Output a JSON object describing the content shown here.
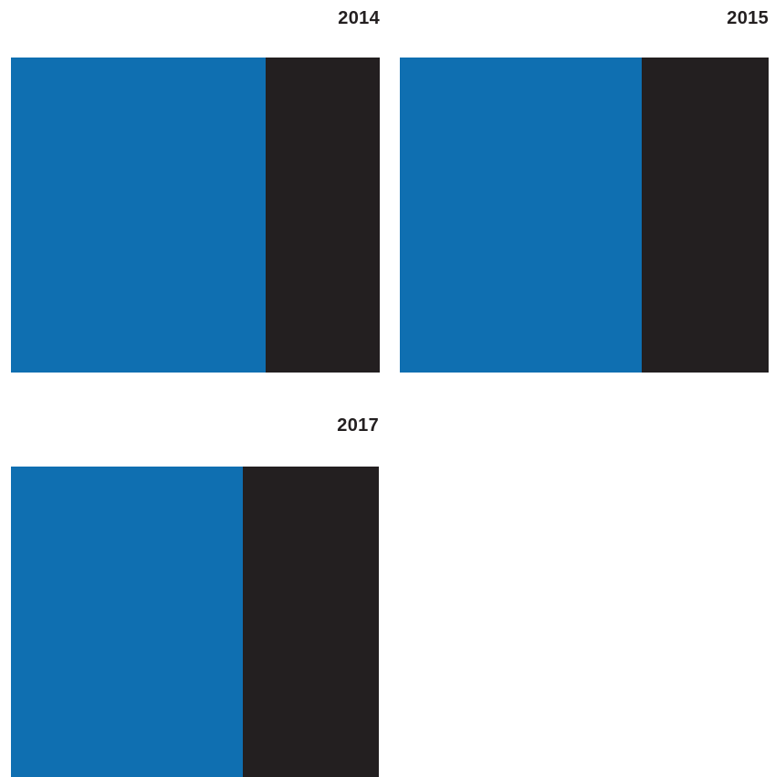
{
  "colors": {
    "primary": "#0f6fb1",
    "secondary": "#231f20",
    "text": "#231f20"
  },
  "chart_data": [
    {
      "type": "bar",
      "stacked": "100%",
      "title": "2014",
      "series": [
        {
          "color": "#0f6fb1",
          "value": 0.69
        },
        {
          "color": "#231f20",
          "value": 0.31
        }
      ]
    },
    {
      "type": "bar",
      "stacked": "100%",
      "title": "2015",
      "series": [
        {
          "color": "#0f6fb1",
          "value": 0.655
        },
        {
          "color": "#231f20",
          "value": 0.345
        }
      ]
    },
    {
      "type": "bar",
      "stacked": "100%",
      "title": "2017",
      "series": [
        {
          "color": "#0f6fb1",
          "value": 0.63
        },
        {
          "color": "#231f20",
          "value": 0.37
        }
      ]
    }
  ]
}
